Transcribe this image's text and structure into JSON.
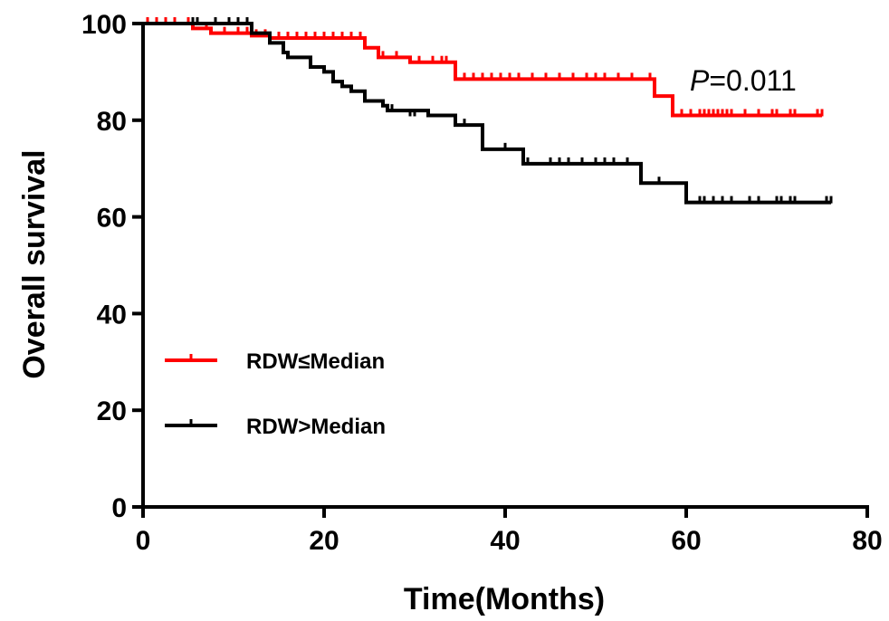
{
  "chart_data": {
    "type": "line",
    "step": true,
    "xlabel": "Time(Months)",
    "ylabel": "Overall survival",
    "xlim": [
      0,
      80
    ],
    "ylim": [
      0,
      100
    ],
    "xticks": [
      "0",
      "20",
      "40",
      "60",
      "80"
    ],
    "yticks": [
      "0",
      "20",
      "40",
      "60",
      "80",
      "100"
    ],
    "grid": false,
    "legend_position": "center-left",
    "annotation": {
      "italic": "P",
      "rest": "=0.011"
    },
    "series": [
      {
        "name": "RDW≤Median",
        "color": "#ff0000",
        "x": [
          0,
          5.5,
          7.5,
          12,
          14,
          24.5,
          26,
          29.5,
          34.5,
          56.5,
          58.5,
          75
        ],
        "y": [
          100,
          99,
          98,
          97.5,
          97,
          95,
          93,
          92,
          88.5,
          85,
          81,
          81
        ],
        "censored": [
          [
            0.5,
            100
          ],
          [
            1.5,
            100
          ],
          [
            2.5,
            100
          ],
          [
            3.5,
            100
          ],
          [
            5,
            100
          ],
          [
            7,
            99
          ],
          [
            9,
            98
          ],
          [
            10.5,
            98
          ],
          [
            11.5,
            98
          ],
          [
            12.5,
            97.5
          ],
          [
            13.5,
            97.5
          ],
          [
            15,
            97
          ],
          [
            16,
            97
          ],
          [
            17,
            97
          ],
          [
            18,
            97
          ],
          [
            19,
            97
          ],
          [
            20,
            97
          ],
          [
            21,
            97
          ],
          [
            22,
            97
          ],
          [
            23,
            97
          ],
          [
            24,
            97
          ],
          [
            26.5,
            93
          ],
          [
            28,
            93
          ],
          [
            30.5,
            92
          ],
          [
            32,
            92
          ],
          [
            33,
            92
          ],
          [
            33.5,
            92
          ],
          [
            35.5,
            88.5
          ],
          [
            36.5,
            88.5
          ],
          [
            37.5,
            88.5
          ],
          [
            38.5,
            88.5
          ],
          [
            39.5,
            88.5
          ],
          [
            40.5,
            88.5
          ],
          [
            41.5,
            88.5
          ],
          [
            43,
            88.5
          ],
          [
            44.5,
            88.5
          ],
          [
            46,
            88.5
          ],
          [
            47.5,
            88.5
          ],
          [
            49,
            88.5
          ],
          [
            50,
            88.5
          ],
          [
            51,
            88.5
          ],
          [
            52.5,
            88.5
          ],
          [
            54,
            88.5
          ],
          [
            56,
            88.5
          ],
          [
            59.5,
            81
          ],
          [
            60.5,
            81
          ],
          [
            61.5,
            81
          ],
          [
            62,
            81
          ],
          [
            62.5,
            81
          ],
          [
            63,
            81
          ],
          [
            63.5,
            81
          ],
          [
            64,
            81
          ],
          [
            64.5,
            81
          ],
          [
            65,
            81
          ],
          [
            66.5,
            81
          ],
          [
            68,
            81
          ],
          [
            69.5,
            81
          ],
          [
            70,
            81
          ],
          [
            71.5,
            81
          ],
          [
            72,
            81
          ],
          [
            74.5,
            81
          ],
          [
            75,
            81
          ]
        ]
      },
      {
        "name": "RDW>Median",
        "color": "#000000",
        "x": [
          0,
          12,
          14,
          15.5,
          16,
          18.5,
          20,
          21,
          22,
          23,
          24.5,
          26.5,
          27,
          31.5,
          34.5,
          37.5,
          42,
          55,
          60,
          76
        ],
        "y": [
          100,
          98,
          96,
          94,
          93,
          91,
          90,
          88,
          87,
          86,
          84,
          83,
          82,
          81,
          79,
          74,
          71,
          67,
          63,
          63
        ],
        "censored": [
          [
            5.5,
            100
          ],
          [
            6,
            100
          ],
          [
            8,
            100
          ],
          [
            9.5,
            100
          ],
          [
            10.5,
            100
          ],
          [
            11.5,
            100
          ],
          [
            27.5,
            82
          ],
          [
            29.5,
            81
          ],
          [
            30,
            81
          ],
          [
            35.5,
            79
          ],
          [
            40,
            74
          ],
          [
            42.5,
            71
          ],
          [
            45,
            71
          ],
          [
            46,
            71
          ],
          [
            47,
            71
          ],
          [
            48.5,
            71
          ],
          [
            50,
            71
          ],
          [
            51,
            71
          ],
          [
            52,
            71
          ],
          [
            53.5,
            71
          ],
          [
            57,
            67
          ],
          [
            61.5,
            63
          ],
          [
            62,
            63
          ],
          [
            63,
            63
          ],
          [
            64,
            63
          ],
          [
            65,
            63
          ],
          [
            67,
            63
          ],
          [
            68,
            63
          ],
          [
            70,
            63
          ],
          [
            70.5,
            63
          ],
          [
            71.5,
            63
          ],
          [
            72,
            63
          ],
          [
            75.5,
            63
          ],
          [
            76,
            63
          ]
        ]
      }
    ]
  }
}
